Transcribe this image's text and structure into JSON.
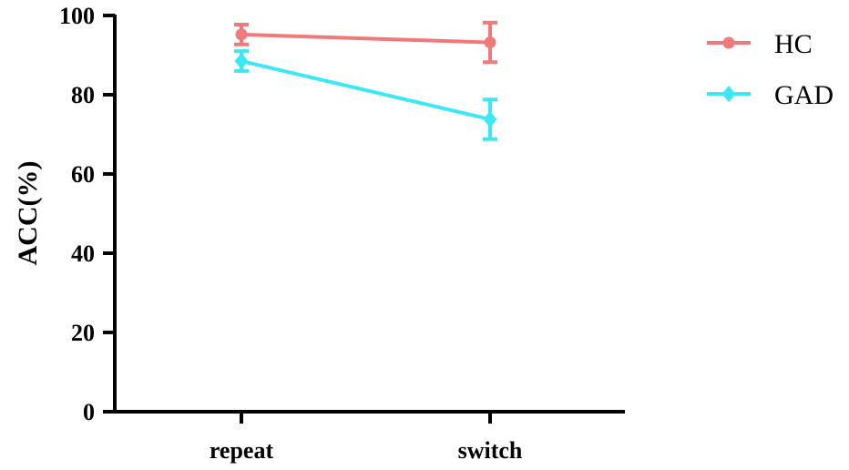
{
  "chart_data": {
    "type": "line",
    "categories": [
      "repeat",
      "switch"
    ],
    "xlabel": "",
    "ylabel": "ACC(%)",
    "ylim": [
      0,
      100
    ],
    "yticks": [
      "0",
      "20",
      "40",
      "60",
      "80",
      "100"
    ],
    "legend_position": "top-right",
    "grid": false,
    "series": [
      {
        "name": "HC",
        "values": [
          95.2,
          93.2
        ],
        "errors": [
          2.5,
          5.0
        ],
        "color": "#f07a7a",
        "marker": "circle"
      },
      {
        "name": "GAD",
        "values": [
          88.5,
          73.8
        ],
        "errors": [
          2.5,
          5.0
        ],
        "color": "#3de8f5",
        "marker": "diamond"
      }
    ]
  }
}
